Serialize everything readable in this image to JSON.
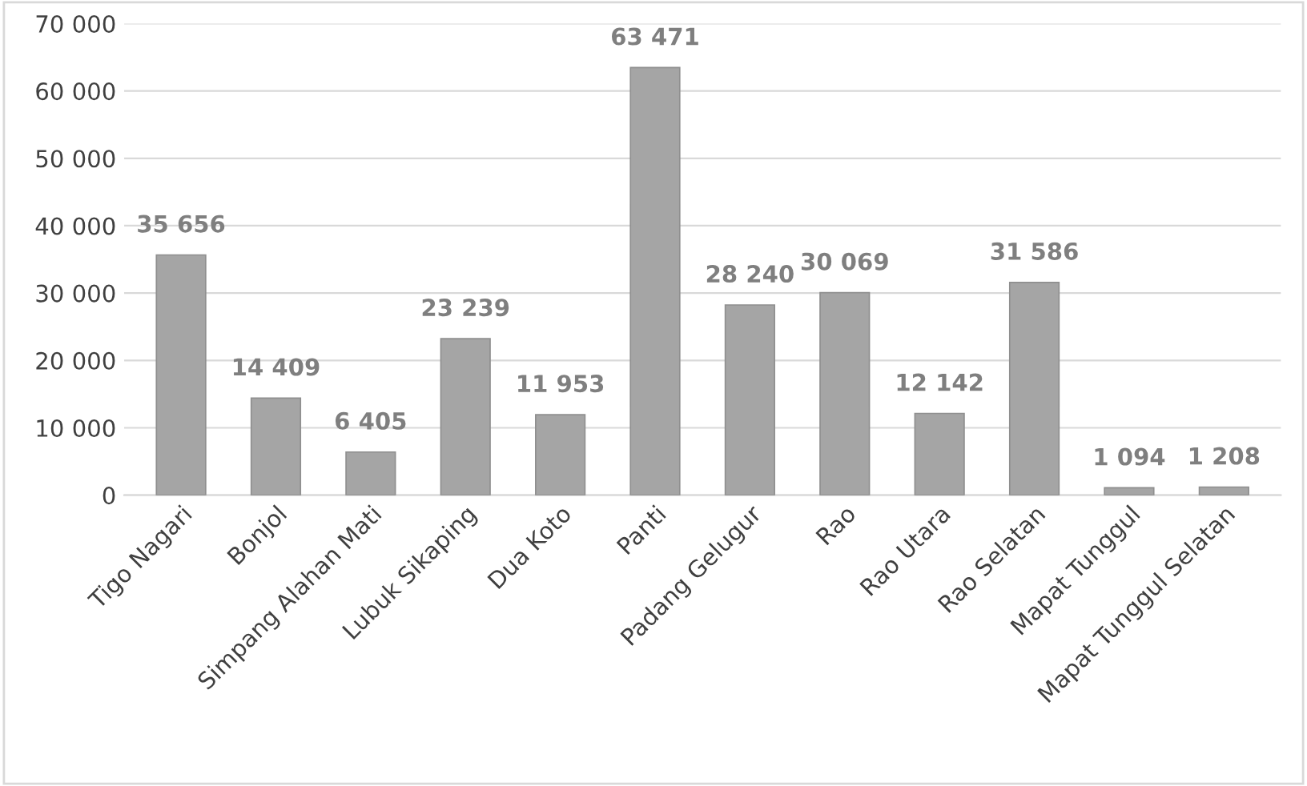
{
  "chart_data": {
    "type": "bar",
    "categories": [
      "Tigo Nagari",
      "Bonjol",
      "Simpang Alahan Mati",
      "Lubuk Sikaping",
      "Dua Koto",
      "Panti",
      "Padang Gelugur",
      "Rao",
      "Rao Utara",
      "Rao Selatan",
      "Mapat Tunggul",
      "Mapat Tunggul Selatan"
    ],
    "values": [
      35656,
      14409,
      6405,
      23239,
      11953,
      63471,
      28240,
      30069,
      12142,
      31586,
      1094,
      1208
    ],
    "value_labels": [
      "35 656",
      "14 409",
      "6 405",
      "23 239",
      "11 953",
      "63 471",
      "28 240",
      "30 069",
      "12 142",
      "31 586",
      "1 094",
      "1 208"
    ],
    "color": "#a5a5a5",
    "ylim": [
      0,
      70000
    ],
    "yticks": [
      {
        "value": 0,
        "label": "0"
      },
      {
        "value": 10000,
        "label": "10 000"
      },
      {
        "value": 20000,
        "label": "20 000"
      },
      {
        "value": 30000,
        "label": "30 000"
      },
      {
        "value": 40000,
        "label": "40 000"
      },
      {
        "value": 50000,
        "label": "50 000"
      },
      {
        "value": 60000,
        "label": "60 000"
      },
      {
        "value": 70000,
        "label": "70 000"
      }
    ],
    "grid": "y",
    "legend": false
  }
}
